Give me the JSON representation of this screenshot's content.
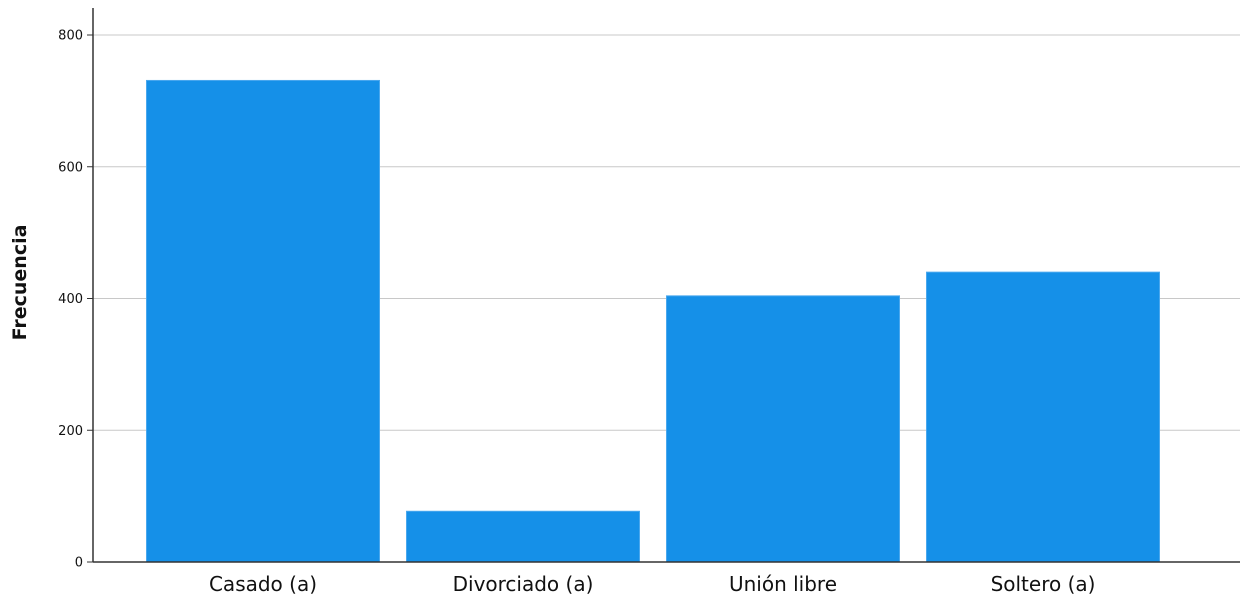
{
  "chart_data": {
    "type": "bar",
    "categories": [
      "Casado (a)",
      "Divorciado (a)",
      "Unión libre",
      "Soltero (a)"
    ],
    "values": [
      731,
      77,
      404,
      440
    ],
    "xlabel": "",
    "ylabel": "Frecuencia",
    "ylim": [
      0,
      800
    ],
    "yticks": [
      0,
      200,
      400,
      600,
      800
    ],
    "grid": true,
    "bar_color": "#1590e8",
    "bar_edge_color": "#4aa8ee"
  }
}
